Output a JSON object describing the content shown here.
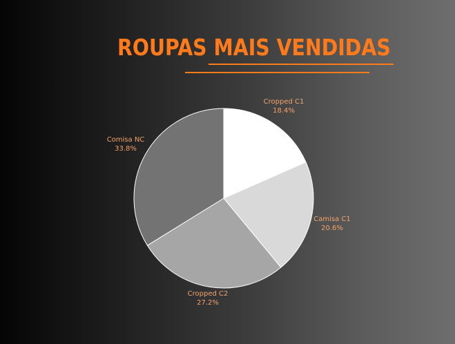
{
  "title": "ROUPAS MAIS VENDIDAS",
  "colors": {
    "accent": "#ff7a1a",
    "label": "#f2a36a"
  },
  "chart_data": {
    "type": "pie",
    "title": "ROUPAS MAIS VENDIDAS",
    "legend": "none",
    "slices": [
      {
        "label": "Cropped C1",
        "percent_label": "18.4%",
        "value": 18.4,
        "color": "#ffffff"
      },
      {
        "label": "Camisa C1",
        "percent_label": "20.6%",
        "value": 20.6,
        "color": "#d9d9d9"
      },
      {
        "label": "Cropped C2",
        "percent_label": "27.2%",
        "value": 27.2,
        "color": "#a6a6a6"
      },
      {
        "label": "Comisa NC",
        "percent_label": "33.8%",
        "value": 33.8,
        "color": "#737373"
      }
    ]
  }
}
